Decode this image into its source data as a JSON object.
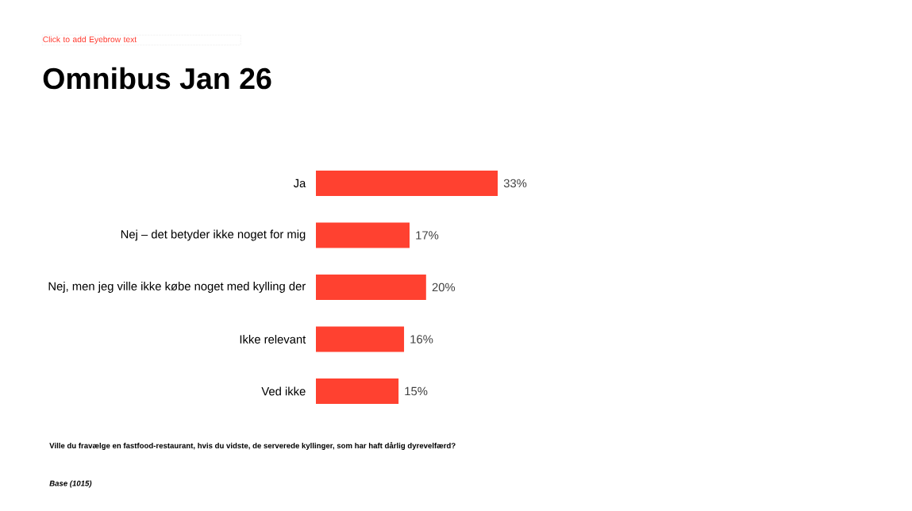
{
  "chart_data": {
    "type": "bar",
    "orientation": "horizontal",
    "title": "Omnibus Jan 26",
    "subtitle": "Click to add Eyebrow text",
    "categories": [
      "Ja",
      "Nej – det betyder ikke noget for mig",
      "Nej, men jeg ville ikke købe noget med kylling der",
      "Ikke relevant",
      "Ved ikke"
    ],
    "values": [
      33,
      17,
      20,
      16,
      15
    ],
    "value_labels": [
      "33%",
      "17%",
      "20%",
      "16%",
      "15%"
    ],
    "color": "#ff4130",
    "annotations": [
      "Ville du fravælge en fastfood-restaurant, hvis du vidste, de serverede kyllinger, som har haft dårlig dyrevelfærd?",
      "Base (1015)"
    ]
  }
}
